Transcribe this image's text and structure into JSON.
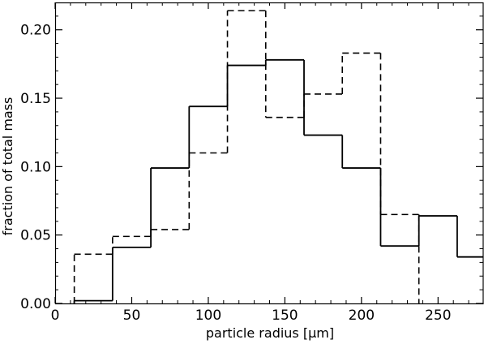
{
  "chart_data": {
    "type": "line",
    "xlabel": "particle radius [μm]",
    "ylabel": "fraction of total mass",
    "xlim": [
      0,
      280
    ],
    "ylim": [
      0,
      0.22
    ],
    "x_ticks": [
      0,
      50,
      100,
      150,
      200,
      250
    ],
    "x_tick_labels": [
      "0",
      "50",
      "100",
      "150",
      "200",
      "250"
    ],
    "y_ticks": [
      0.0,
      0.05,
      0.1,
      0.15,
      0.2
    ],
    "y_tick_labels": [
      "0.00",
      "0.05",
      "0.10",
      "0.15",
      "0.20"
    ],
    "grid": false,
    "series": [
      {
        "style": "solid",
        "color": "#000000",
        "bin_edges": [
          12.5,
          37.5,
          62.5,
          87.5,
          112.5,
          137.5,
          162.5,
          187.5,
          212.5,
          237.5,
          262.5,
          287.5
        ],
        "values": [
          0.002,
          0.041,
          0.099,
          0.144,
          0.174,
          0.178,
          0.123,
          0.099,
          0.042,
          0.064,
          0.034
        ]
      },
      {
        "style": "dashed",
        "color": "#000000",
        "bin_edges": [
          12.5,
          37.5,
          62.5,
          87.5,
          112.5,
          137.5,
          162.5,
          187.5,
          212.5,
          237.5
        ],
        "values": [
          0.036,
          0.049,
          0.054,
          0.11,
          0.214,
          0.136,
          0.153,
          0.183,
          0.065
        ]
      }
    ]
  }
}
